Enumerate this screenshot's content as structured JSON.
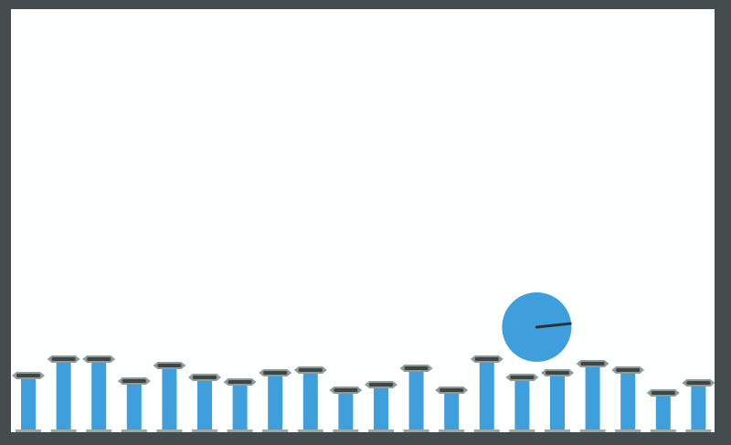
{
  "game": {
    "colors": {
      "frame": "#454c4d",
      "playfield": "#fdfefe",
      "pillar": "#3f9fdc",
      "cap_outer": "#8d9b99",
      "cap_inner": "#3e4546",
      "base": "#9aa8a6",
      "ball": "#3f9fdc",
      "ball_pointer": "#2c3338"
    },
    "pillars": [
      {
        "height_level": 0.62
      },
      {
        "height_level": 0.91
      },
      {
        "height_level": 0.91
      },
      {
        "height_level": 0.52
      },
      {
        "height_level": 0.8
      },
      {
        "height_level": 0.58
      },
      {
        "height_level": 0.5
      },
      {
        "height_level": 0.67
      },
      {
        "height_level": 0.71
      },
      {
        "height_level": 0.35
      },
      {
        "height_level": 0.45
      },
      {
        "height_level": 0.75
      },
      {
        "height_level": 0.35
      },
      {
        "height_level": 0.91
      },
      {
        "height_level": 0.58
      },
      {
        "height_level": 0.67
      },
      {
        "height_level": 0.84
      },
      {
        "height_level": 0.71
      },
      {
        "height_level": 0.3
      },
      {
        "height_level": 0.48
      }
    ],
    "ball": {
      "on_pillar": 14,
      "pointer_angle_deg": -6
    }
  }
}
